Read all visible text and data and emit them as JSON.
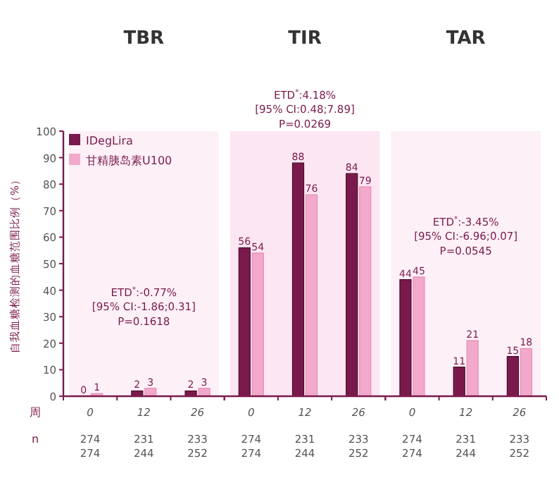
{
  "chart_data": [
    {
      "type": "bar",
      "title": "TBR",
      "ylabel": "自我血糖检测的血糖范围比例（%）",
      "categories": [
        "0",
        "12",
        "26"
      ],
      "series": [
        {
          "name": "IDegLira",
          "color": "#7a1a4c",
          "values": [
            0,
            2,
            2
          ]
        },
        {
          "name": "甘精胰岛素U100",
          "color": "#f2a9cb",
          "values": [
            1,
            3,
            3
          ]
        }
      ],
      "ylim": [
        0,
        100
      ],
      "yticks": [
        0,
        10,
        20,
        30,
        40,
        50,
        60,
        70,
        80,
        90,
        100
      ],
      "data_labels": true,
      "legend": "top left",
      "grid": false,
      "annotations": [
        "ETD$^{*}$:-0.77%\n[95% CI:-1.86;0.31]\nP=0.1618",
        "周",
        "n",
        "274\n274",
        "231\n244",
        "233\n252"
      ]
    },
    {
      "type": "bar",
      "title": "TIR",
      "categories": [
        "0",
        "12",
        "26"
      ],
      "series": [
        {
          "color": "#7a1a4c",
          "values": [
            56,
            88,
            84
          ]
        },
        {
          "color": "#f2a9cb",
          "values": [
            54,
            76,
            79
          ]
        }
      ],
      "ylim": [
        0,
        100
      ],
      "tick_labels": "x",
      "data_labels": true,
      "annotations": [
        "ETD$^{*}$:4.18%\n[95% CI:0.48;7.89]\nP=0.0269",
        "274\n274",
        "231\n244",
        "233\n252"
      ]
    },
    {
      "type": "bar",
      "title": "TAR",
      "categories": [
        "0",
        "12",
        "26"
      ],
      "series": [
        {
          "color": "#7a1a4c",
          "values": [
            44,
            11,
            15
          ]
        },
        {
          "color": "#f2a9cb",
          "values": [
            45,
            21,
            18
          ]
        }
      ],
      "ylim": [
        0,
        100
      ],
      "tick_labels": "x",
      "data_labels": true,
      "annotations": [
        "ETD$^{*}$:-3.45%\n[95% CI:-6.96;0.07]\nP=0.0545",
        "274\n274",
        "231\n244",
        "233\n252"
      ]
    }
  ]
}
